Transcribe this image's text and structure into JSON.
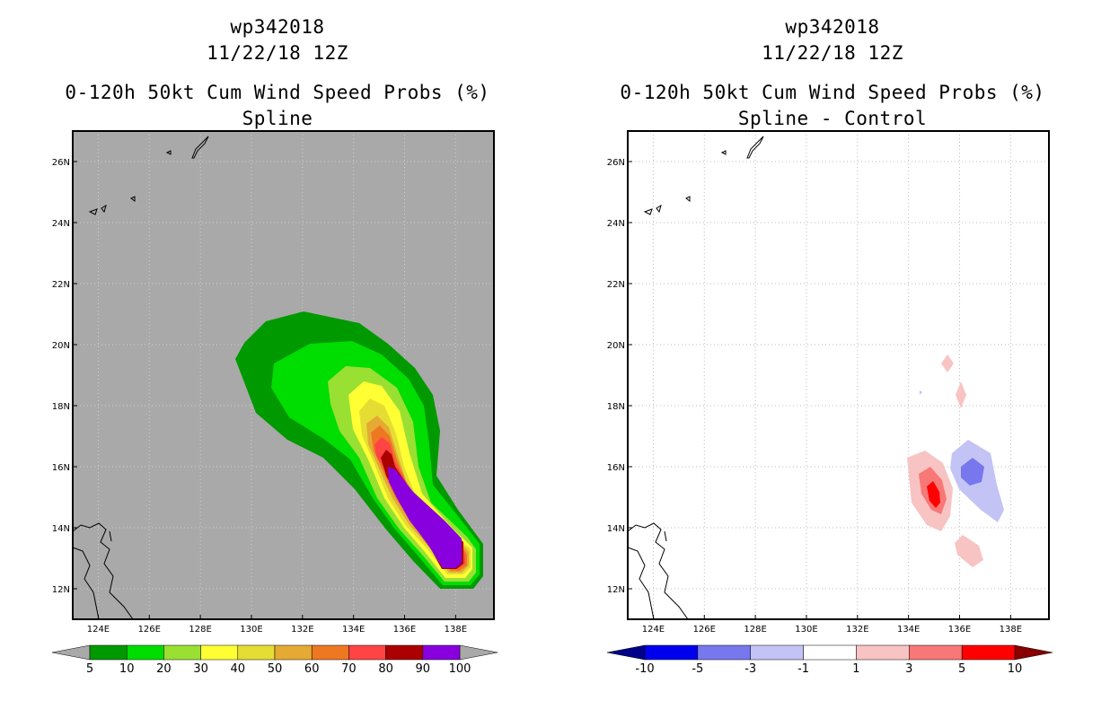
{
  "chart_data": [
    {
      "type": "filled-contour-map",
      "storm_id": "wp342018",
      "datetime": "11/22/18 12Z",
      "title": "0-120h 50kt Cum Wind Speed Probs (%)",
      "subtitle": "Spline",
      "lon_range": [
        123,
        139.5
      ],
      "lat_range": [
        11,
        27
      ],
      "x_ticks": [
        "124E",
        "126E",
        "128E",
        "130E",
        "132E",
        "134E",
        "136E",
        "138E"
      ],
      "y_ticks": [
        "12N",
        "14N",
        "16N",
        "18N",
        "20N",
        "22N",
        "24N",
        "26N"
      ],
      "background": "#a9a9a9",
      "grid": true,
      "colorbar": {
        "labels": [
          "5",
          "10",
          "20",
          "30",
          "40",
          "50",
          "60",
          "70",
          "80",
          "90",
          "100"
        ],
        "colors": [
          "#009900",
          "#00dd00",
          "#99e033",
          "#ffff33",
          "#e5dd33",
          "#e5aa33",
          "#ee7722",
          "#ff4444",
          "#aa0000",
          "#8800dd"
        ],
        "end_colors": [
          "#a9a9a9",
          "#a9a9a9"
        ]
      }
    },
    {
      "type": "filled-contour-map",
      "storm_id": "wp342018",
      "datetime": "11/22/18 12Z",
      "title": "0-120h 50kt Cum Wind Speed Probs (%)",
      "subtitle": "Spline - Control",
      "lon_range": [
        123,
        139.5
      ],
      "lat_range": [
        11,
        27
      ],
      "x_ticks": [
        "124E",
        "126E",
        "128E",
        "130E",
        "132E",
        "134E",
        "136E",
        "138E"
      ],
      "y_ticks": [
        "12N",
        "14N",
        "16N",
        "18N",
        "20N",
        "22N",
        "24N",
        "26N"
      ],
      "background": "#ffffff",
      "grid": true,
      "colorbar": {
        "labels": [
          "-10",
          "-5",
          "-3",
          "-1",
          "1",
          "3",
          "5",
          "10"
        ],
        "colors": [
          "#0000ee",
          "#7777ee",
          "#c3c3f5",
          "#ffffff",
          "#f8c3c3",
          "#f87777",
          "#ff0000"
        ],
        "end_colors": [
          "#000088",
          "#880000"
        ]
      }
    }
  ]
}
